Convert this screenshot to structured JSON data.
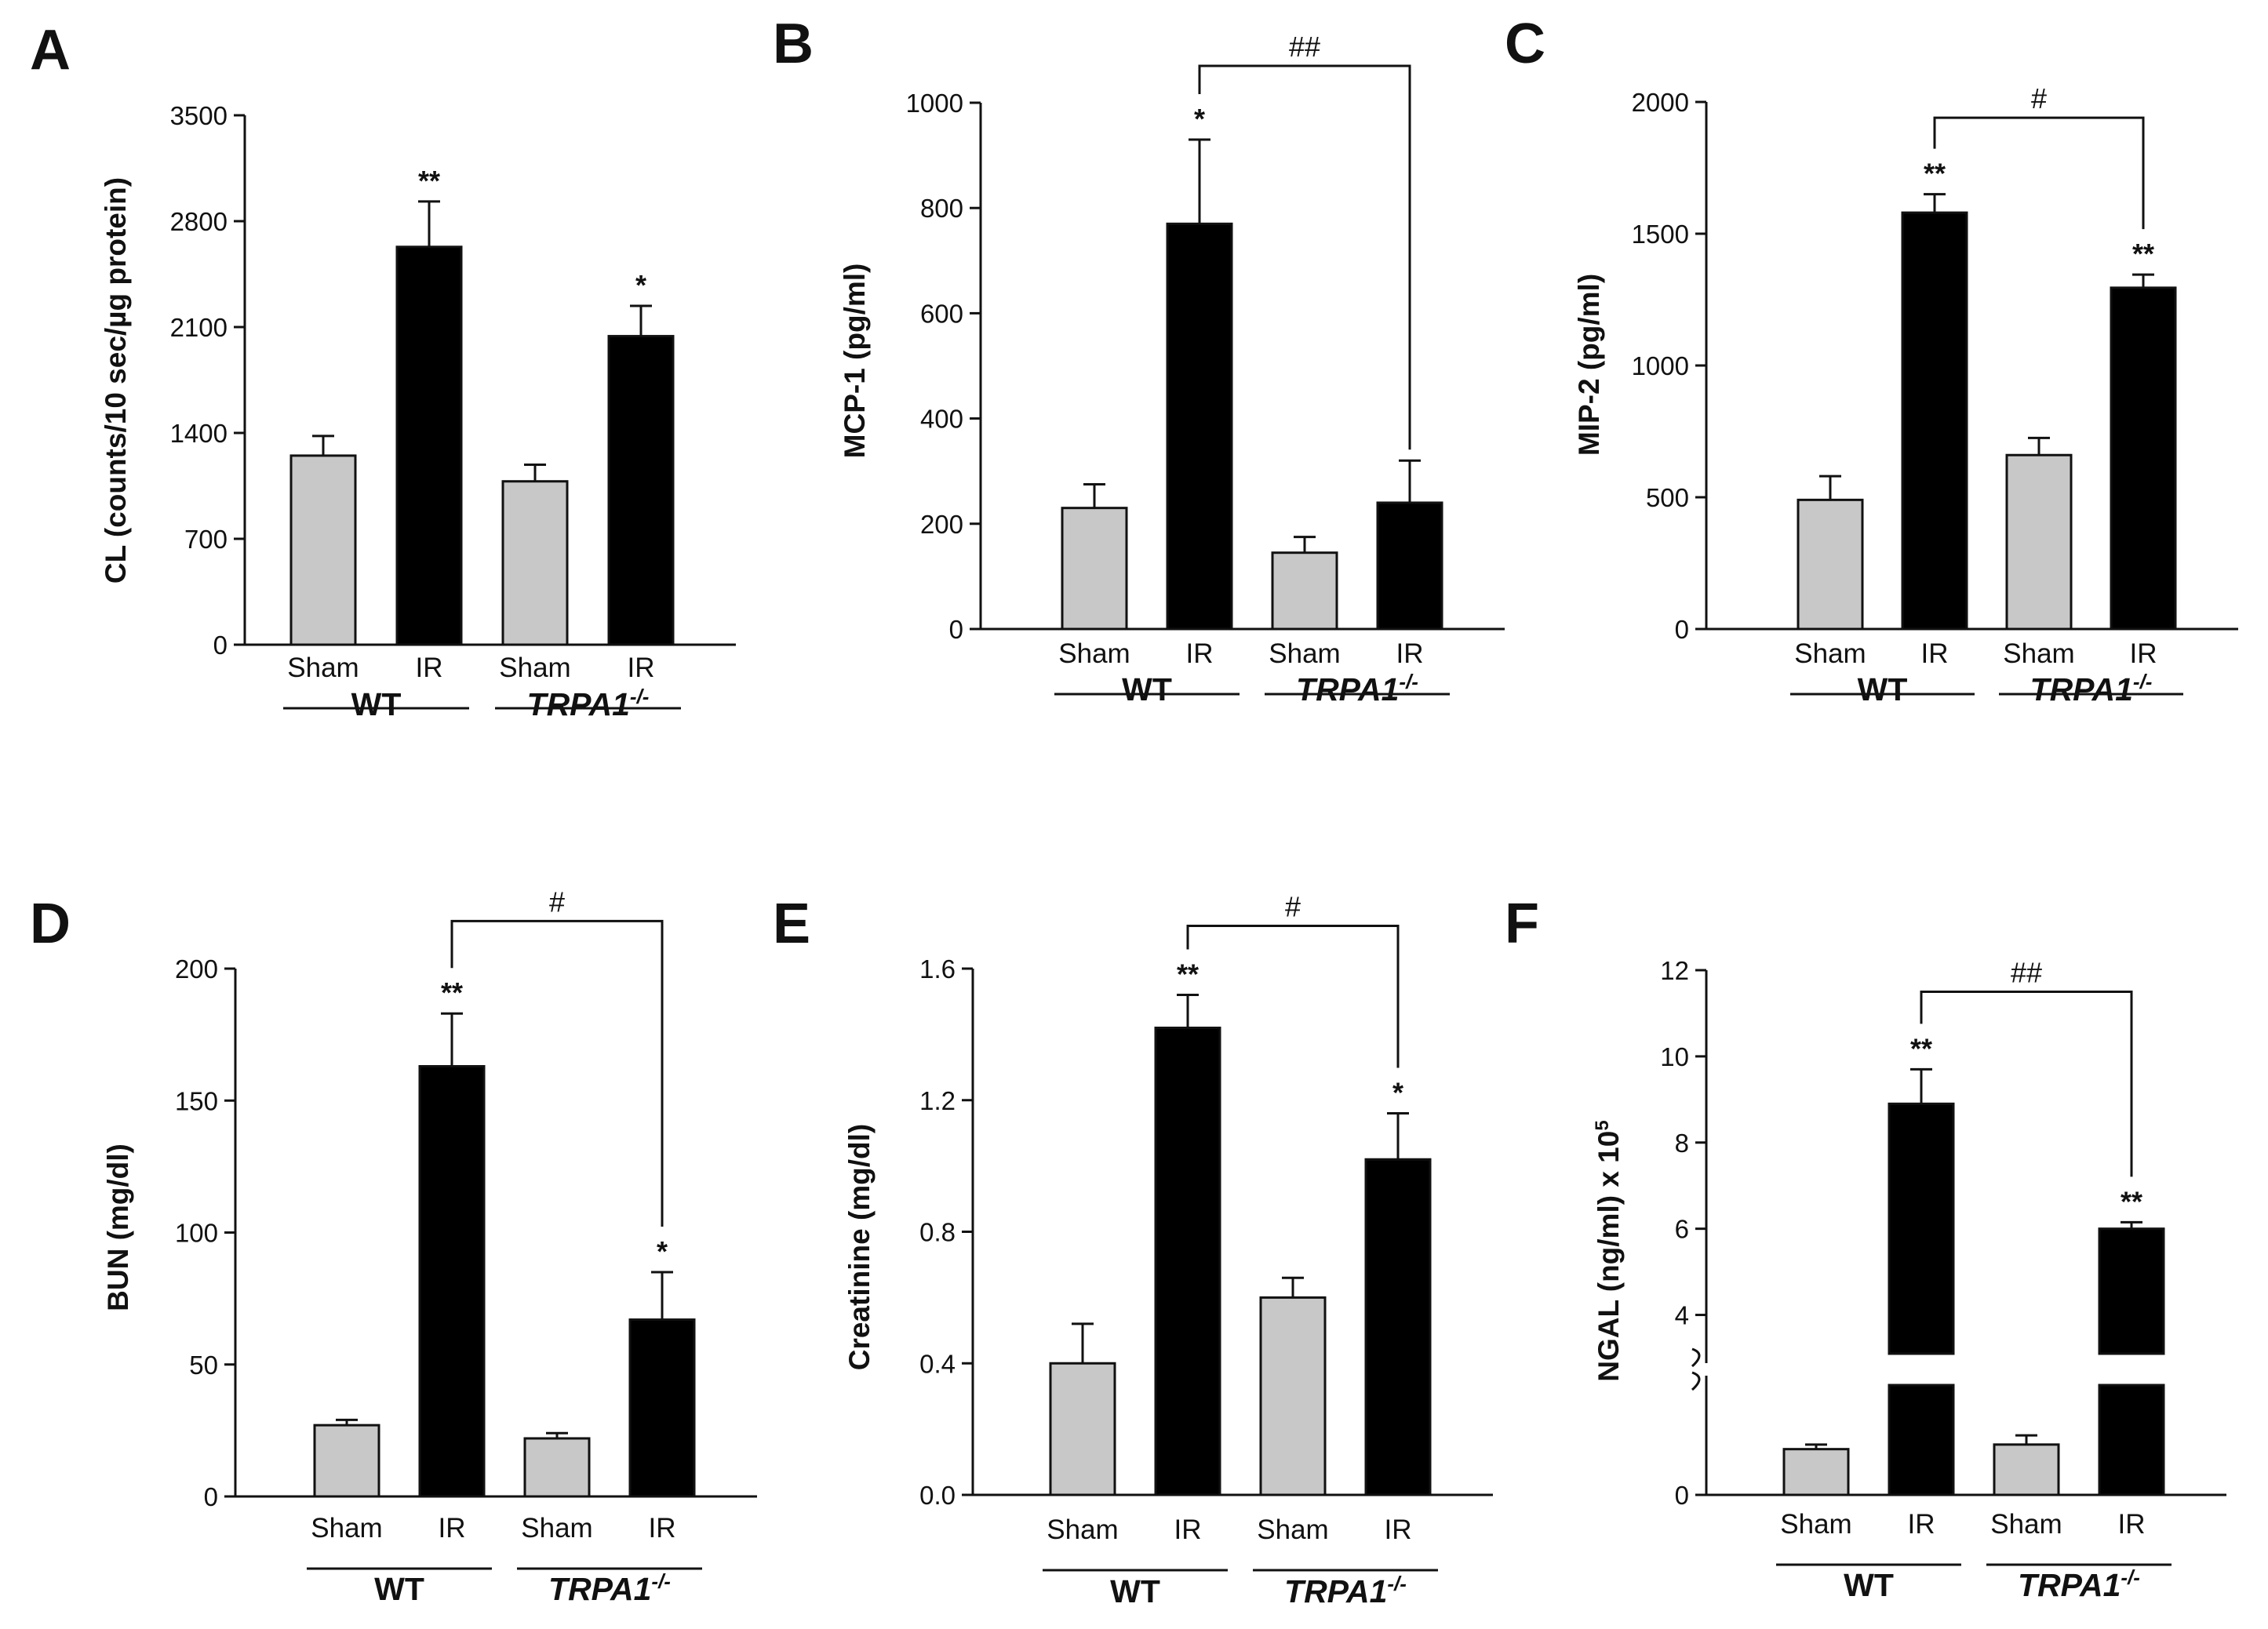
{
  "figure": {
    "panels": [
      {
        "letter": "A",
        "chart_data": {
          "type": "bar",
          "title": "",
          "ylabel": "CL (counts/10 sec/µg protein)",
          "ylim": [
            0,
            3500
          ],
          "yticks": [
            0,
            700,
            1400,
            2100,
            2800,
            3500
          ],
          "ytick_labels": [
            "0",
            "700",
            "1400",
            "2100",
            "2800",
            "3500"
          ],
          "categories": [
            "Sham",
            "IR",
            "Sham",
            "IR"
          ],
          "values": [
            1250,
            2630,
            1080,
            2040
          ],
          "errors": [
            130,
            300,
            110,
            200
          ],
          "colors": [
            "#c8c8c8",
            "#000000",
            "#c8c8c8",
            "#000000"
          ],
          "annotations": [
            "",
            "**",
            "",
            "*"
          ],
          "groups": [
            {
              "label": "WT",
              "italic": false,
              "sup": ""
            },
            {
              "label": "TRPA1",
              "italic": true,
              "sup": "-/-"
            }
          ],
          "bracket": null,
          "axis_break": null
        }
      },
      {
        "letter": "B",
        "chart_data": {
          "type": "bar",
          "title": "",
          "ylabel": "MCP-1 (pg/ml)",
          "ylim": [
            0,
            1000
          ],
          "yticks": [
            0,
            200,
            400,
            600,
            800,
            1000
          ],
          "ytick_labels": [
            "0",
            "200",
            "400",
            "600",
            "800",
            "1000"
          ],
          "categories": [
            "Sham",
            "IR",
            "Sham",
            "IR"
          ],
          "values": [
            230,
            770,
            145,
            240
          ],
          "errors": [
            45,
            160,
            30,
            80
          ],
          "colors": [
            "#c8c8c8",
            "#000000",
            "#c8c8c8",
            "#000000"
          ],
          "annotations": [
            "",
            "*",
            "",
            ""
          ],
          "groups": [
            {
              "label": "WT",
              "italic": false,
              "sup": ""
            },
            {
              "label": "TRPA1",
              "italic": true,
              "sup": "-/-"
            }
          ],
          "bracket": {
            "from": 1,
            "to": 3,
            "level": 1070,
            "label": "##"
          },
          "axis_break": null
        }
      },
      {
        "letter": "C",
        "chart_data": {
          "type": "bar",
          "title": "",
          "ylabel": "MIP-2 (pg/ml)",
          "ylim": [
            0,
            2000
          ],
          "yticks": [
            0,
            500,
            1000,
            1500,
            2000
          ],
          "ytick_labels": [
            "0",
            "500",
            "1000",
            "1500",
            "2000"
          ],
          "categories": [
            "Sham",
            "IR",
            "Sham",
            "IR"
          ],
          "values": [
            490,
            1580,
            660,
            1295
          ],
          "errors": [
            90,
            70,
            65,
            50
          ],
          "colors": [
            "#c8c8c8",
            "#000000",
            "#c8c8c8",
            "#000000"
          ],
          "annotations": [
            "",
            "**",
            "",
            "**"
          ],
          "groups": [
            {
              "label": "WT",
              "italic": false,
              "sup": ""
            },
            {
              "label": "TRPA1",
              "italic": true,
              "sup": "-/-"
            }
          ],
          "bracket": {
            "from": 1,
            "to": 3,
            "level": 1940,
            "label": "#"
          },
          "axis_break": null
        }
      },
      {
        "letter": "D",
        "chart_data": {
          "type": "bar",
          "title": "",
          "ylabel": "BUN (mg/dl)",
          "ylim": [
            0,
            200
          ],
          "yticks": [
            0,
            50,
            100,
            150,
            200
          ],
          "ytick_labels": [
            "0",
            "50",
            "100",
            "150",
            "200"
          ],
          "categories": [
            "Sham",
            "IR",
            "Sham",
            "IR"
          ],
          "values": [
            27,
            163,
            22,
            67
          ],
          "errors": [
            2,
            20,
            2,
            18
          ],
          "colors": [
            "#c8c8c8",
            "#000000",
            "#c8c8c8",
            "#000000"
          ],
          "annotations": [
            "",
            "**",
            "",
            "*"
          ],
          "groups": [
            {
              "label": "WT",
              "italic": false,
              "sup": ""
            },
            {
              "label": "TRPA1",
              "italic": true,
              "sup": "-/-"
            }
          ],
          "bracket": {
            "from": 1,
            "to": 3,
            "level": 218,
            "label": "#"
          },
          "axis_break": null
        }
      },
      {
        "letter": "E",
        "chart_data": {
          "type": "bar",
          "title": "",
          "ylabel": "Creatinine (mg/dl)",
          "ylim": [
            0,
            1.6
          ],
          "yticks": [
            0,
            0.4,
            0.8,
            1.2,
            1.6
          ],
          "ytick_labels": [
            "0.0",
            "0.4",
            "0.8",
            "1.2",
            "1.6"
          ],
          "categories": [
            "Sham",
            "IR",
            "Sham",
            "IR"
          ],
          "values": [
            0.4,
            1.42,
            0.6,
            1.02
          ],
          "errors": [
            0.12,
            0.1,
            0.06,
            0.14
          ],
          "colors": [
            "#c8c8c8",
            "#000000",
            "#c8c8c8",
            "#000000"
          ],
          "annotations": [
            "",
            "**",
            "",
            "*"
          ],
          "groups": [
            {
              "label": "WT",
              "italic": false,
              "sup": ""
            },
            {
              "label": "TRPA1",
              "italic": true,
              "sup": "-/-"
            }
          ],
          "bracket": {
            "from": 1,
            "to": 3,
            "level": 1.73,
            "label": "#"
          },
          "axis_break": null
        }
      },
      {
        "letter": "F",
        "chart_data": {
          "type": "bar",
          "title": "",
          "ylabel": "NGAL (ng/ml) x 10",
          "ylabel_sup": "5",
          "ylim": [
            0,
            12
          ],
          "yticks": [
            0,
            4,
            6,
            8,
            10,
            12
          ],
          "ytick_labels": [
            "0",
            "4",
            "6",
            "8",
            "10",
            "12"
          ],
          "categories": [
            "Sham",
            "IR",
            "Sham",
            "IR"
          ],
          "values": [
            1.0,
            8.9,
            1.1,
            6.0
          ],
          "errors": [
            0.1,
            0.8,
            0.2,
            0.15
          ],
          "colors": [
            "#c8c8c8",
            "#000000",
            "#c8c8c8",
            "#000000"
          ],
          "annotations": [
            "",
            "**",
            "",
            "**"
          ],
          "groups": [
            {
              "label": "WT",
              "italic": false,
              "sup": ""
            },
            {
              "label": "TRPA1",
              "italic": true,
              "sup": "-/-"
            }
          ],
          "bracket": {
            "from": 1,
            "to": 3,
            "level": 11.5,
            "label": "##"
          },
          "axis_break": {
            "from": 2.4,
            "to": 3.1
          }
        }
      }
    ]
  }
}
